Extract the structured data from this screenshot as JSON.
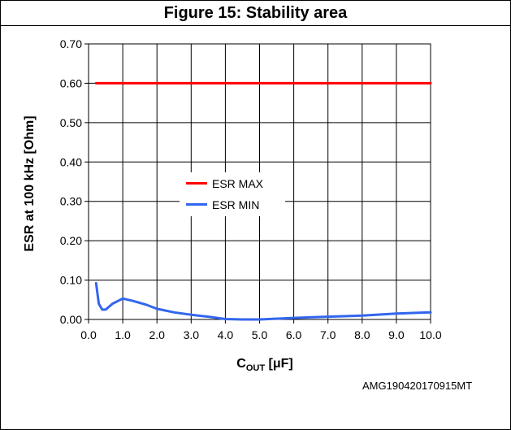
{
  "title": "Figure 15: Stability area",
  "footer_code": "AMG190420170915MT",
  "x_label_main": "C",
  "x_label_sub": "OUT",
  "x_label_unit": " [μF]",
  "chart_data": {
    "type": "line",
    "title": "Figure 15: Stability area",
    "xlabel": "COUT [μF]",
    "ylabel": "ESR at 100 kHz [Ohm]",
    "xlim": [
      0,
      10
    ],
    "ylim": [
      0,
      0.7
    ],
    "x_ticks": [
      "0.0",
      "1.0",
      "2.0",
      "3.0",
      "4.0",
      "5.0",
      "6.0",
      "7.0",
      "8.0",
      "9.0",
      "10.0"
    ],
    "y_ticks": [
      "0.00",
      "0.10",
      "0.20",
      "0.30",
      "0.40",
      "0.50",
      "0.60",
      "0.70"
    ],
    "grid": true,
    "legend_position": "center-left",
    "series": [
      {
        "name": "ESR MAX",
        "color": "#ff0000",
        "x": [
          0.22,
          10.0
        ],
        "y": [
          0.6,
          0.6
        ]
      },
      {
        "name": "ESR MIN",
        "color": "#3366ee",
        "x": [
          0.22,
          0.3,
          0.4,
          0.5,
          0.7,
          1.0,
          1.3,
          1.7,
          2.0,
          2.5,
          3.0,
          3.5,
          4.0,
          4.5,
          5.0,
          6.0,
          7.0,
          8.0,
          9.0,
          10.0
        ],
        "y": [
          0.092,
          0.04,
          0.025,
          0.025,
          0.04,
          0.053,
          0.047,
          0.037,
          0.027,
          0.018,
          0.012,
          0.007,
          0.001,
          0.0,
          0.0,
          0.004,
          0.007,
          0.01,
          0.015,
          0.018
        ]
      }
    ]
  }
}
